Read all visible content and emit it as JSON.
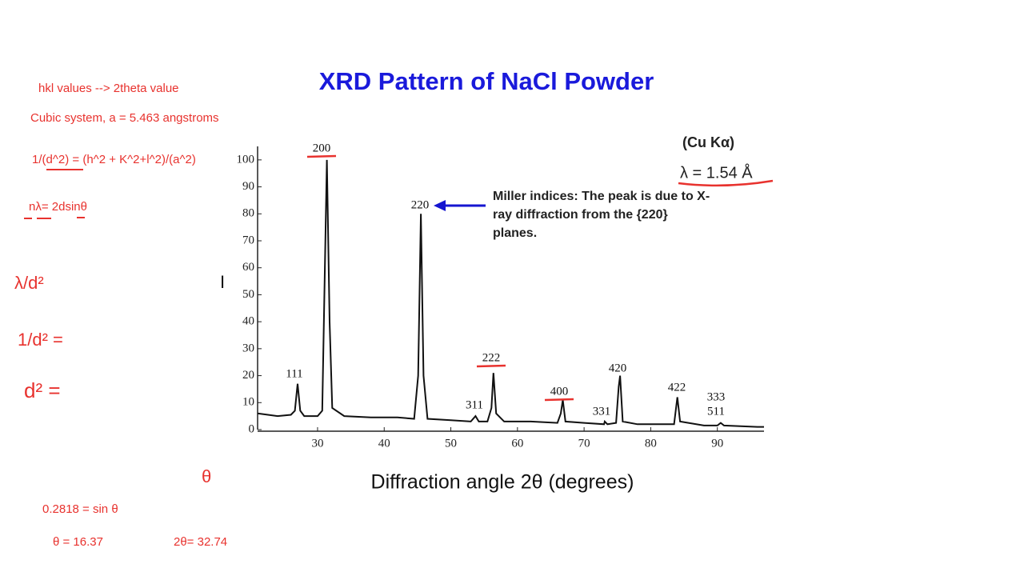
{
  "chart_data": {
    "type": "line",
    "title": "XRD Pattern of NaCl Powder",
    "x_label": "Diffraction angle 2θ (degrees)",
    "y_label": "I",
    "source_label": "(Cu Kα)",
    "wavelength_label": "λ = 1.54 Å",
    "callout": [
      "Miller indices: The peak is due to X-",
      "ray diffraction from the {220}",
      "planes."
    ],
    "peak_labels": [
      "111",
      "200",
      "220",
      "311",
      "222",
      "400",
      "331",
      "420",
      "422",
      "333",
      "511"
    ],
    "color": "#111111",
    "xlim": [
      21,
      97
    ],
    "ylim": [
      0,
      105
    ],
    "xticks": [
      30,
      40,
      50,
      60,
      70,
      80,
      90
    ],
    "yticks": [
      0,
      10,
      20,
      30,
      40,
      50,
      60,
      70,
      80,
      90,
      100
    ],
    "x": [
      21,
      24,
      26,
      26.6,
      27,
      27.4,
      28,
      30,
      30.7,
      31.1,
      31.4,
      31.8,
      32.2,
      34,
      38,
      42,
      44.5,
      45.1,
      45.5,
      45.9,
      46.5,
      50,
      53,
      53.7,
      54.2,
      55.5,
      56.1,
      56.4,
      56.8,
      58,
      62,
      66,
      66.5,
      66.8,
      67.2,
      70,
      73,
      73.1,
      73.5,
      74.8,
      75.2,
      75.4,
      75.8,
      78,
      83.5,
      84,
      84.4,
      88,
      90,
      90.5,
      91,
      96,
      97
    ],
    "y": [
      6,
      5,
      5.5,
      7,
      17,
      7,
      5,
      5,
      7,
      60,
      100,
      40,
      8,
      5,
      4.5,
      4.5,
      4,
      20,
      80,
      20,
      4,
      3.5,
      3,
      5,
      3,
      3,
      8,
      21,
      6,
      3,
      3,
      2.5,
      6,
      11,
      3,
      2.5,
      2,
      3,
      2,
      2.5,
      16,
      20,
      3,
      2,
      2,
      12,
      3,
      1.5,
      1.5,
      2.5,
      1.5,
      1,
      1
    ]
  },
  "notes": {
    "lines": [
      "hkl values --> 2theta value",
      "Cubic system,  a = 5.463 angstroms",
      "1/(d^2) = (h^2 + K^2+l^2)/(a^2)",
      "nλ= 2dsinθ"
    ],
    "handwritten": [
      "λ/d²",
      "1/d² =",
      "d² =",
      "θ"
    ],
    "result_lines": [
      "0.2818 = sin θ",
      "θ = 16.37",
      "2θ= 32.74"
    ]
  }
}
